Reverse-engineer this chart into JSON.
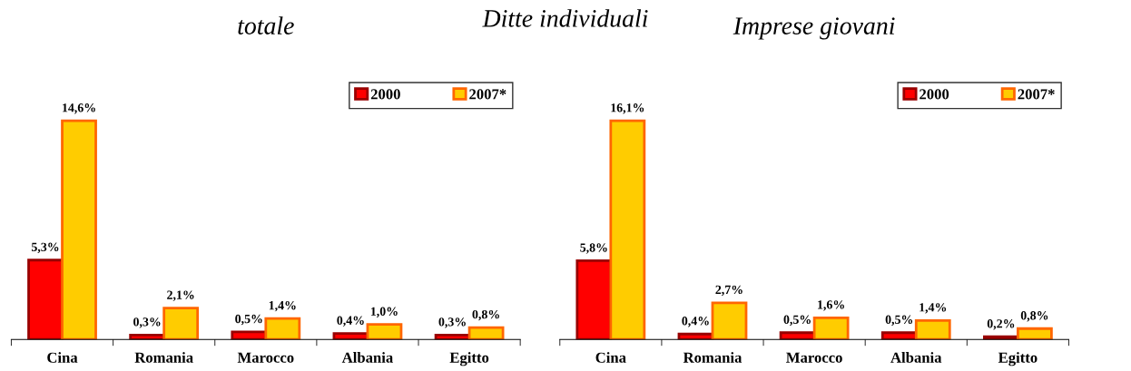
{
  "chart_data": [
    {
      "type": "bar",
      "title": "Ditte individuali",
      "subtitle": "totale",
      "categories": [
        "Cina",
        "Romania",
        "Marocco",
        "Albania",
        "Egitto"
      ],
      "tick_labels": "x",
      "legend": "top right",
      "grid": false,
      "series": [
        {
          "name": "2000",
          "color": "#ff0000",
          "values": [
            5.3,
            0.3,
            0.5,
            0.4,
            0.3
          ],
          "value_labels": [
            "5,3%",
            "0,3%",
            "0,5%",
            "0,4%",
            "0,3%"
          ]
        },
        {
          "name": "2007*",
          "color": "#ffcc00",
          "values": [
            14.6,
            2.1,
            1.4,
            1.0,
            0.8
          ],
          "value_labels": [
            "14,6%",
            "2,1%",
            "1,4%",
            "1,0%",
            "0,8%"
          ]
        }
      ]
    },
    {
      "type": "bar",
      "subtitle": "Imprese giovani",
      "categories": [
        "Cina",
        "Romania",
        "Marocco",
        "Albania",
        "Egitto"
      ],
      "tick_labels": "x",
      "legend": "top right",
      "grid": false,
      "series": [
        {
          "name": "2000",
          "color": "#ff0000",
          "values": [
            5.8,
            0.4,
            0.5,
            0.5,
            0.2
          ],
          "value_labels": [
            "5,8%",
            "0,4%",
            "0,5%",
            "0,5%",
            "0,2%"
          ]
        },
        {
          "name": "2007*",
          "color": "#ffcc00",
          "values": [
            16.1,
            2.7,
            1.6,
            1.4,
            0.8
          ],
          "value_labels": [
            "16,1%",
            "2,7%",
            "1,6%",
            "1,4%",
            "0,8%"
          ]
        }
      ]
    }
  ]
}
